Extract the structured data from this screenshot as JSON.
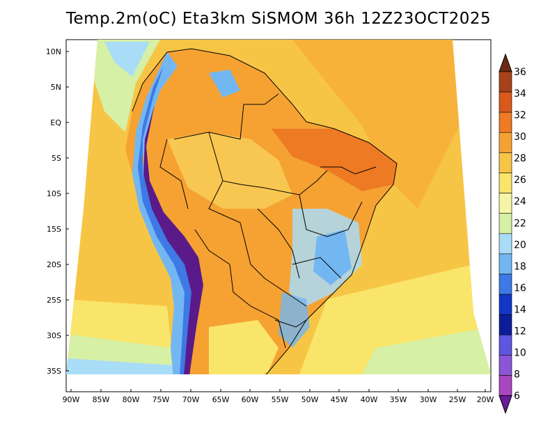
{
  "title": "Temp.2m(oC) Eta3km SiSMOM 36h 12Z23OCT2025",
  "lat_labels": [
    "10N",
    "5N",
    "EQ",
    "5S",
    "10S",
    "15S",
    "20S",
    "25S",
    "30S",
    "35S"
  ],
  "lon_labels": [
    "90W",
    "85W",
    "80W",
    "75W",
    "70W",
    "65W",
    "60W",
    "55W",
    "50W",
    "45W",
    "40W",
    "35W",
    "30W",
    "25W",
    "20W"
  ],
  "colorbar": {
    "labels": [
      "36",
      "34",
      "32",
      "30",
      "28",
      "26",
      "24",
      "22",
      "20",
      "18",
      "16",
      "14",
      "12",
      "10",
      "8",
      "6"
    ],
    "colors": [
      "#6b2a10",
      "#a8421b",
      "#d9591c",
      "#ee7a24",
      "#f5a233",
      "#f7c545",
      "#f9e56a",
      "#f6f5a6",
      "#d6f0a6",
      "#a9dcf7",
      "#73b7f2",
      "#3e79e6",
      "#1336c8",
      "#0d1d9a",
      "#5c56e0",
      "#8a55d6",
      "#a848c0",
      "#6a1a9a"
    ]
  },
  "colors": {
    "ocean_warm": "#f7c545",
    "ocean_hot": "#f5a233",
    "ocean_mild": "#f9e56a",
    "ocean_cool": "#d6f0a6",
    "ocean_cold": "#a9dcf7",
    "land_base": "#f5a233",
    "land_hot": "#ee7a24",
    "land_cool": "#f9e56a",
    "andes_cold": "#73b7f2",
    "andes_colder": "#3e79e6",
    "andes_coldest": "#5a1a8a",
    "border": "#000000"
  }
}
